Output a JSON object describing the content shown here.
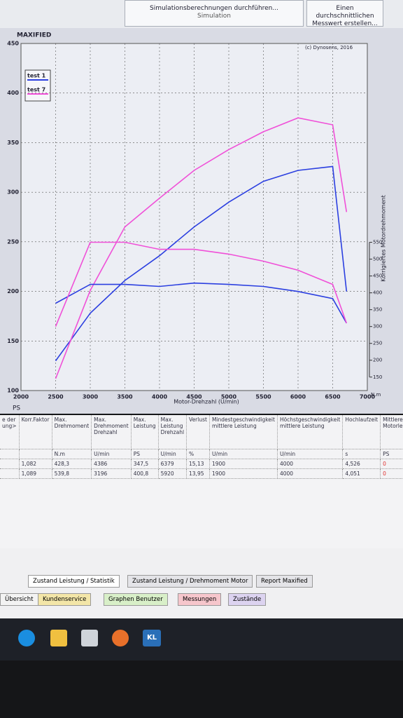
{
  "ribbon": {
    "button_1": "Simulationsberechnungen durchführen...",
    "group": "Simulation",
    "button_2": "Einen durchschnittlichen Messwert erstellen..."
  },
  "chart_data": {
    "type": "line",
    "title": "MAXIFIED",
    "annotation": "(c) Dynosens, 2016",
    "x_label": "Motor-Drehzahl (U/min)",
    "y_label": "PS",
    "y2_label": "Korrigiertes Motordrehmoment",
    "y2_unit": "N.m",
    "x": [
      2500,
      3000,
      3500,
      4000,
      4500,
      5000,
      5500,
      6000,
      6500,
      6700
    ],
    "series": [
      {
        "name": "test 1",
        "color": "#2b3fe0",
        "values": [
          130,
          178,
          211,
          236,
          265,
          290,
          311,
          322,
          326,
          200
        ]
      },
      {
        "name": "test 7",
        "color": "#f050d8",
        "values": [
          112,
          201,
          265,
          294,
          322,
          343,
          361,
          375,
          368,
          280
        ]
      },
      {
        "name": "test 1",
        "color": "#2b3fe0",
        "axis": "y2",
        "values": [
          369,
          425,
          425,
          419,
          429,
          425,
          419,
          404,
          383,
          310
        ]
      },
      {
        "name": "test 7",
        "color": "#f050d8",
        "axis": "y2",
        "values": [
          300,
          550,
          550,
          529,
          529,
          515,
          494,
          467,
          425,
          310
        ]
      }
    ],
    "xlim": [
      2000,
      7000
    ],
    "xticks": [
      2000,
      2500,
      3000,
      3500,
      4000,
      4500,
      5000,
      5500,
      6000,
      6500,
      7000
    ],
    "ylim": [
      100,
      450
    ],
    "yticks": [
      100,
      150,
      200,
      250,
      300,
      350,
      400,
      450
    ],
    "y2lim": [
      110,
      1140
    ],
    "y2ticks": [
      150,
      200,
      250,
      300,
      350,
      400,
      450,
      500,
      550
    ],
    "grid": true,
    "legend": "top-left"
  },
  "table": {
    "headers": [
      "e der ung>",
      "Korr.Faktor",
      "Max. Drehmoment",
      "Max. Drehmoment Drehzahl",
      "Max. Leistung",
      "Max. Leistung Drehzahl",
      "Verlust",
      "Mindestgeschwindigkeit mittlere Leistung",
      "Höchstgeschwindigkeit mittlere Leistung",
      "Hochlaufzeit",
      "Mittlere Motorleistung"
    ],
    "units": [
      "N.m",
      "U/min",
      "PS",
      "U/min",
      "%",
      "U/min",
      "U/min",
      "s",
      "PS"
    ],
    "rows": [
      [
        "1,082",
        "428,3",
        "4386",
        "347,5",
        "6379",
        "15,13",
        "1900",
        "4000",
        "4,526",
        "0"
      ],
      [
        "1,089",
        "539,8",
        "3196",
        "400,8",
        "5920",
        "13,95",
        "1900",
        "4000",
        "4,051",
        "0"
      ]
    ]
  },
  "tabs": {
    "row1": [
      "Zustand Leistung / Statistik",
      "Zustand Leistung / Drehmoment Motor",
      "Report Maxified"
    ],
    "row2": [
      "Übersicht",
      "Kundenservice",
      "Graphen Benutzer",
      "Messungen",
      "Zustände"
    ]
  },
  "taskbar": {
    "app": "KL"
  }
}
